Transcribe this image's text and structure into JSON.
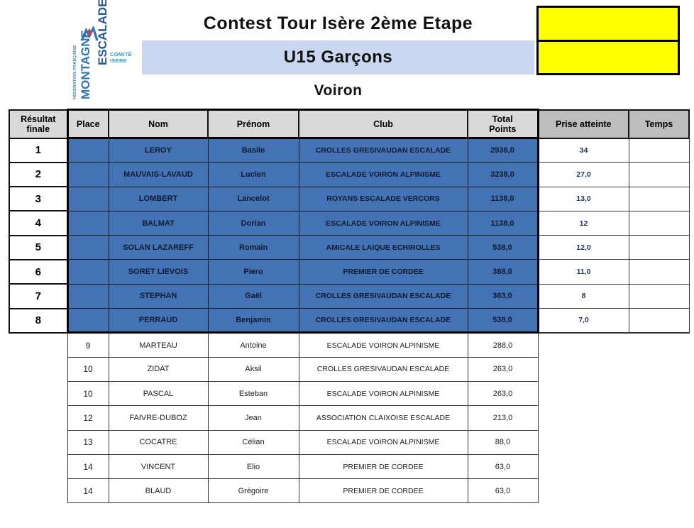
{
  "header": {
    "title": "Contest Tour Isère 2ème Etape",
    "category": "U15 Garçons",
    "venue": "Voiron",
    "logo": {
      "federation_label": "FÉDÉRATION FRANÇAISE",
      "brand_line1": "MONTAGNE",
      "brand_line2": "ESCALADE",
      "committee_line1": "COMITÉ",
      "committee_line2": "ISÈRE",
      "icon": "mountain-logo-icon"
    },
    "yellow_cells": [
      "",
      ""
    ]
  },
  "colors": {
    "finalist_row_blue": "#4372b5",
    "category_band_blue": "#c9d8f0",
    "header_gray_light": "#d9d9d9",
    "header_gray_dark": "#bdbdbd",
    "highlight_yellow": "#ffff00",
    "logo_blue": "#2e75b6",
    "logo_dark_blue": "#2456a4",
    "logo_light_blue": "#2e9bd6",
    "logo_red": "#e5342c"
  },
  "table": {
    "columns": [
      {
        "label": "Résultat\nfinale"
      },
      {
        "label": "Place"
      },
      {
        "label": "Nom"
      },
      {
        "label": "Prénom"
      },
      {
        "label": "Club"
      },
      {
        "label": "Total\nPoints"
      },
      {
        "label": "Prise atteinte"
      },
      {
        "label": "Temps"
      }
    ],
    "rows": [
      {
        "finalist": true,
        "resultat": "1",
        "place": "",
        "nom": "LEROY",
        "prenom": "Basile",
        "club": "CROLLES GRESIVAUDAN ESCALADE",
        "total": "2938,0",
        "prise": "34",
        "temps": ""
      },
      {
        "finalist": true,
        "resultat": "2",
        "place": "",
        "nom": "MAUVAIS-LAVAUD",
        "prenom": "Lucien",
        "club": "ESCALADE VOIRON ALPINISME",
        "total": "3238,0",
        "prise": "27,0",
        "temps": ""
      },
      {
        "finalist": true,
        "resultat": "3",
        "place": "",
        "nom": "LOMBERT",
        "prenom": "Lancelot",
        "club": "ROYANS ESCALADE VERCORS",
        "total": "1138,0",
        "prise": "13,0",
        "temps": ""
      },
      {
        "finalist": true,
        "resultat": "4",
        "place": "",
        "nom": "BALMAT",
        "prenom": "Dorian",
        "club": "ESCALADE VOIRON ALPINISME",
        "total": "1138,0",
        "prise": "12",
        "temps": ""
      },
      {
        "finalist": true,
        "resultat": "5",
        "place": "",
        "nom": "SOLAN LAZAREFF",
        "prenom": "Romain",
        "club": "AMICALE LAIQUE ECHIROLLES",
        "total": "538,0",
        "prise": "12,0",
        "temps": ""
      },
      {
        "finalist": true,
        "resultat": "6",
        "place": "",
        "nom": "SORET LIEVOIS",
        "prenom": "Piero",
        "club": "PREMIER DE CORDEE",
        "total": "388,0",
        "prise": "11,0",
        "temps": ""
      },
      {
        "finalist": true,
        "resultat": "7",
        "place": "",
        "nom": "STEPHAN",
        "prenom": "Gaël",
        "club": "CROLLES GRESIVAUDAN ESCALADE",
        "total": "363,0",
        "prise": "8",
        "temps": ""
      },
      {
        "finalist": true,
        "resultat": "8",
        "place": "",
        "nom": "PERRAUD",
        "prenom": "Benjamin",
        "club": "CROLLES GRESIVAUDAN ESCALADE",
        "total": "538,0",
        "prise": "7,0",
        "temps": ""
      },
      {
        "finalist": false,
        "resultat": "",
        "place": "9",
        "nom": "MARTEAU",
        "prenom": "Antoine",
        "club": "ESCALADE VOIRON ALPINISME",
        "total": "288,0",
        "prise": "",
        "temps": ""
      },
      {
        "finalist": false,
        "resultat": "",
        "place": "10",
        "nom": "ZIDAT",
        "prenom": "Aksil",
        "club": "CROLLES GRESIVAUDAN ESCALADE",
        "total": "263,0",
        "prise": "",
        "temps": ""
      },
      {
        "finalist": false,
        "resultat": "",
        "place": "10",
        "nom": "PASCAL",
        "prenom": "Esteban",
        "club": "ESCALADE VOIRON ALPINISME",
        "total": "263,0",
        "prise": "",
        "temps": ""
      },
      {
        "finalist": false,
        "resultat": "",
        "place": "12",
        "nom": "FAIVRE-DUBOZ",
        "prenom": "Jean",
        "club": "ASSOCIATION CLAIXOISE ESCALADE",
        "total": "213,0",
        "prise": "",
        "temps": ""
      },
      {
        "finalist": false,
        "resultat": "",
        "place": "13",
        "nom": "COCATRE",
        "prenom": "Célian",
        "club": "ESCALADE VOIRON ALPINISME",
        "total": "88,0",
        "prise": "",
        "temps": ""
      },
      {
        "finalist": false,
        "resultat": "",
        "place": "14",
        "nom": "VINCENT",
        "prenom": "Elio",
        "club": "PREMIER DE CORDEE",
        "total": "63,0",
        "prise": "",
        "temps": ""
      },
      {
        "finalist": false,
        "resultat": "",
        "place": "14",
        "nom": "BLAUD",
        "prenom": "Grégoire",
        "club": "PREMIER DE CORDEE",
        "total": "63,0",
        "prise": "",
        "temps": ""
      }
    ]
  }
}
